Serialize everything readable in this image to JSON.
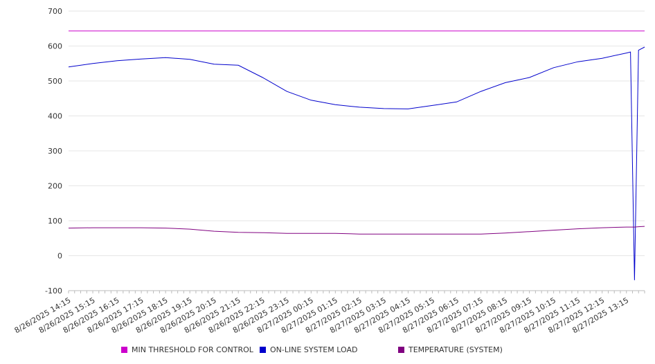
{
  "chart_data": {
    "type": "line",
    "title": "",
    "xlabel": "",
    "ylabel": "",
    "ylim": [
      -100,
      700
    ],
    "y_ticks": [
      -100,
      0,
      100,
      200,
      300,
      400,
      500,
      600,
      700
    ],
    "grid": "horizontal",
    "legend_position": "bottom",
    "x_tick_labels": [
      "8/26/2025 14:15",
      "8/26/2025 15:15",
      "8/26/2025 16:15",
      "8/26/2025 17:15",
      "8/26/2025 18:15",
      "8/26/2025 19:15",
      "8/26/2025 20:15",
      "8/26/2025 21:15",
      "8/26/2025 22:15",
      "8/26/2025 23:15",
      "8/27/2025 00:15",
      "8/27/2025 01:15",
      "8/27/2025 02:15",
      "8/27/2025 03:15",
      "8/27/2025 04:15",
      "8/27/2025 05:15",
      "8/27/2025 06:15",
      "8/27/2025 07:15",
      "8/27/2025 08:15",
      "8/27/2025 09:15",
      "8/27/2025 10:15",
      "8/27/2025 11:15",
      "8/27/2025 12:15",
      "8/27/2025 13:15"
    ],
    "x": [
      "8/26/2025 14:15",
      "8/26/2025 15:15",
      "8/26/2025 16:15",
      "8/26/2025 17:15",
      "8/26/2025 18:15",
      "8/26/2025 19:15",
      "8/26/2025 20:15",
      "8/26/2025 21:15",
      "8/26/2025 22:15",
      "8/26/2025 23:15",
      "8/27/2025 00:15",
      "8/27/2025 01:15",
      "8/27/2025 02:15",
      "8/27/2025 03:15",
      "8/27/2025 04:15",
      "8/27/2025 05:15",
      "8/27/2025 06:15",
      "8/27/2025 07:15",
      "8/27/2025 08:15",
      "8/27/2025 09:15",
      "8/27/2025 10:15",
      "8/27/2025 11:15",
      "8/27/2025 12:15",
      "8/27/2025 13:15",
      "8/27/2025 13:25",
      "8/27/2025 13:35",
      "8/27/2025 13:45",
      "8/27/2025 14:00"
    ],
    "series": [
      {
        "name": "MIN THRESHOLD FOR CONTROL",
        "color": "#cc00cc",
        "values": [
          643,
          643,
          643,
          643,
          643,
          643,
          643,
          643,
          643,
          643,
          643,
          643,
          643,
          643,
          643,
          643,
          643,
          643,
          643,
          643,
          643,
          643,
          643,
          643,
          643,
          643,
          643,
          643
        ]
      },
      {
        "name": "ON-LINE SYSTEM LOAD",
        "color": "#0000cc",
        "values": [
          540,
          550,
          558,
          563,
          567,
          562,
          548,
          545,
          510,
          470,
          445,
          432,
          425,
          421,
          420,
          430,
          440,
          470,
          495,
          510,
          538,
          555,
          565,
          580,
          583,
          -70,
          588,
          597
        ]
      },
      {
        "name": "TEMPERATURE (SYSTEM)",
        "color": "#800080",
        "values": [
          79,
          80,
          80,
          80,
          79,
          76,
          70,
          67,
          66,
          64,
          64,
          64,
          62,
          62,
          62,
          62,
          62,
          62,
          65,
          69,
          73,
          77,
          80,
          82,
          82,
          82,
          83,
          84
        ]
      }
    ]
  }
}
